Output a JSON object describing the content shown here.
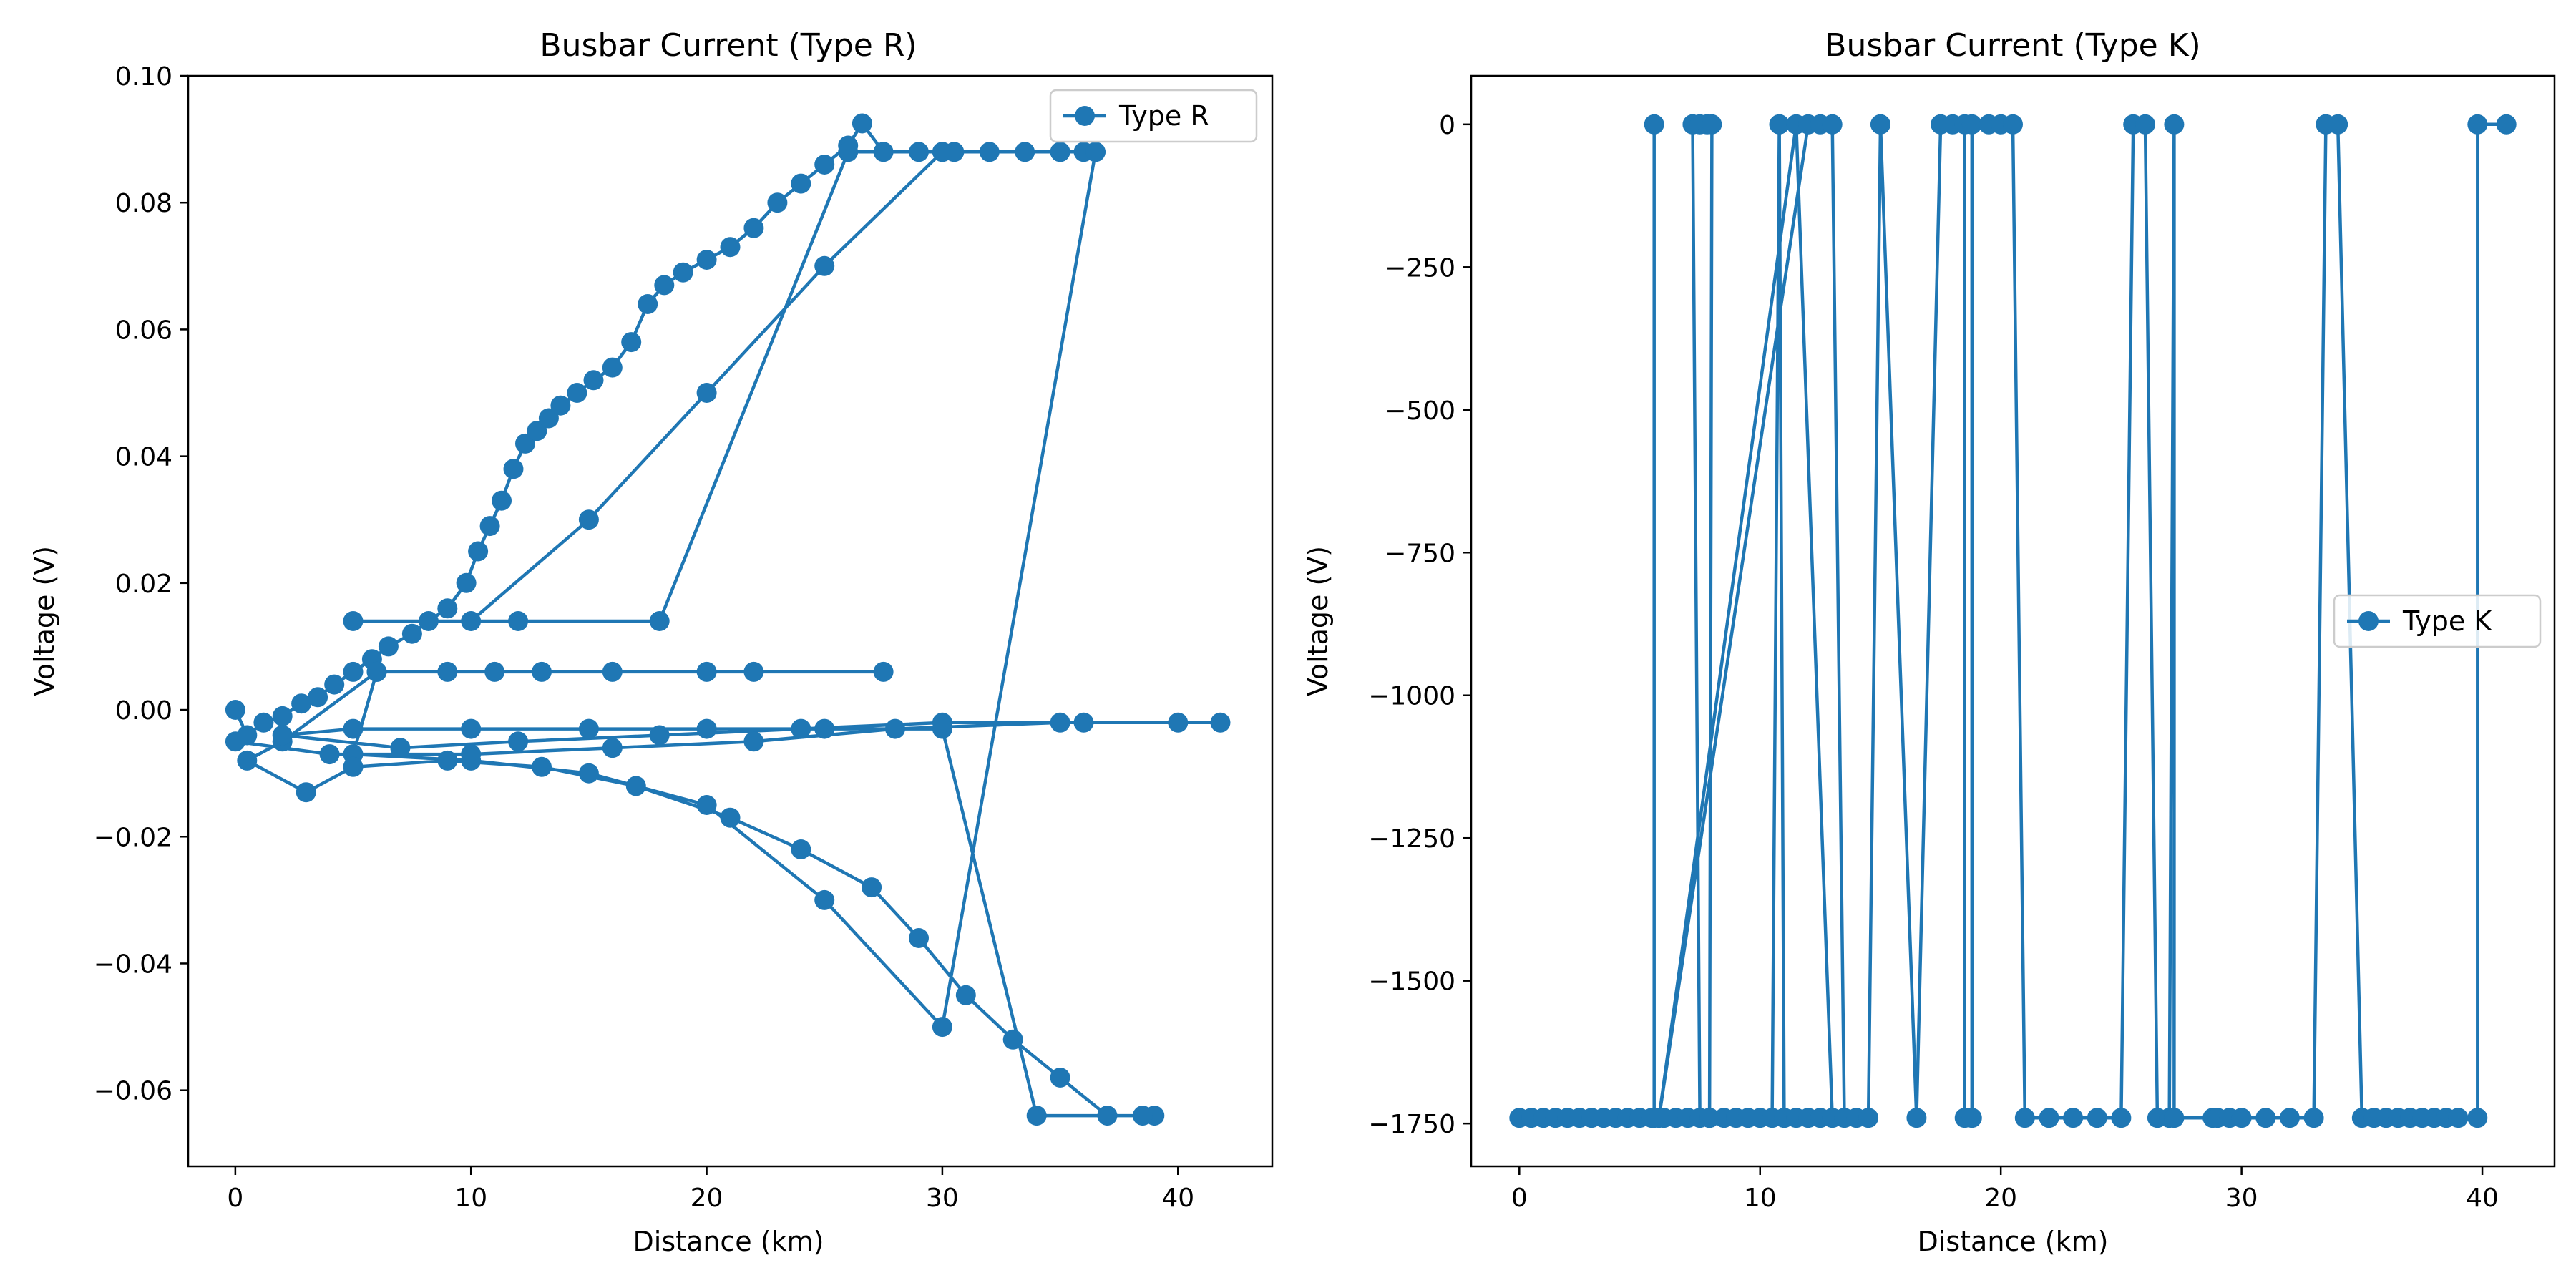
{
  "chart_data": [
    {
      "type": "line",
      "title": "Busbar Current (Type R)",
      "xlabel": "Distance (km)",
      "ylabel": "Voltage (V)",
      "xlim": [
        -2,
        44
      ],
      "ylim": [
        -0.072,
        0.1
      ],
      "xticks": [
        "0",
        "10",
        "20",
        "30",
        "40"
      ],
      "yticks": [
        "−0.06",
        "−0.04",
        "−0.02",
        "0.00",
        "0.02",
        "0.04",
        "0.06",
        "0.08",
        "0.10"
      ],
      "legend": "top-right",
      "color": "#1f77b4",
      "series": [
        {
          "name": "Type R",
          "x": [
            0,
            0.5,
            1.2,
            2.0,
            2.8,
            3.5,
            4.2,
            5.0,
            5.8,
            6.5,
            7.5,
            8.2,
            9.0,
            9.8,
            10.3,
            10.8,
            11.3,
            11.8,
            12.3,
            12.8,
            13.3,
            13.8,
            14.5,
            15.2,
            16.0,
            16.8,
            17.5,
            18.2,
            19.0,
            20.0,
            21.0,
            22.0,
            23.0,
            24.0,
            25.0,
            26.0,
            26.6,
            27.5,
            29.0,
            30.5,
            32.0,
            33.5,
            35.0,
            36.5,
            36.0,
            30.0,
            25.0,
            20.0,
            15.0,
            10.0,
            5.0,
            12.0,
            18.0,
            26.0,
            30.0,
            35.0,
            36.5,
            30.0,
            25.0,
            20.0,
            15.0,
            10.0,
            5.0,
            6.0,
            9.0,
            13.0,
            20.0,
            27.5,
            22.0,
            16.0,
            11.0,
            6.0,
            2.0,
            0.5,
            3.0,
            5.0,
            9.0,
            13.0,
            17.0,
            21.0,
            24.0,
            27.0,
            29.0,
            31.0,
            33.0,
            35.0,
            37.0,
            39.0,
            38.5,
            34.0,
            30.0,
            25.0,
            20.0,
            15.0,
            10.0,
            5.0,
            2.0,
            7.0,
            12.0,
            18.0,
            24.0,
            30.0,
            36.0,
            40.0,
            41.8,
            35.0,
            28.0,
            22.0,
            16.0,
            10.0,
            4.0,
            0.0
          ],
          "y": [
            0.0,
            -0.004,
            -0.002,
            -0.001,
            0.001,
            0.002,
            0.004,
            0.006,
            0.008,
            0.01,
            0.012,
            0.014,
            0.016,
            0.02,
            0.025,
            0.029,
            0.033,
            0.038,
            0.042,
            0.044,
            0.046,
            0.048,
            0.05,
            0.052,
            0.054,
            0.058,
            0.064,
            0.067,
            0.069,
            0.071,
            0.073,
            0.076,
            0.08,
            0.083,
            0.086,
            0.089,
            0.0925,
            0.088,
            0.088,
            0.088,
            0.088,
            0.088,
            0.088,
            0.088,
            0.088,
            0.088,
            0.07,
            0.05,
            0.03,
            0.014,
            0.014,
            0.014,
            0.014,
            0.088,
            0.088,
            0.088,
            0.088,
            -0.05,
            -0.03,
            -0.015,
            -0.01,
            -0.008,
            -0.007,
            0.006,
            0.006,
            0.006,
            0.006,
            0.006,
            0.006,
            0.006,
            0.006,
            0.006,
            -0.005,
            -0.008,
            -0.013,
            -0.009,
            -0.008,
            -0.009,
            -0.012,
            -0.017,
            -0.022,
            -0.028,
            -0.036,
            -0.045,
            -0.052,
            -0.058,
            -0.064,
            -0.064,
            -0.064,
            -0.064,
            -0.003,
            -0.003,
            -0.003,
            -0.003,
            -0.003,
            -0.003,
            -0.004,
            -0.006,
            -0.005,
            -0.004,
            -0.003,
            -0.002,
            -0.002,
            -0.002,
            -0.002,
            -0.002,
            -0.003,
            -0.005,
            -0.006,
            -0.007,
            -0.007,
            -0.005
          ]
        }
      ]
    },
    {
      "type": "line",
      "title": "Busbar Current (Type K)",
      "xlabel": "Distance (km)",
      "ylabel": "Voltage (V)",
      "xlim": [
        -2,
        43
      ],
      "ylim": [
        -1825,
        85
      ],
      "xticks": [
        "0",
        "10",
        "20",
        "30",
        "40"
      ],
      "yticks": [
        "−1750",
        "−1500",
        "−1250",
        "−1000",
        "−750",
        "−500",
        "−250",
        "0"
      ],
      "legend": "center-right",
      "color": "#1f77b4",
      "series": [
        {
          "name": "Type K",
          "x": [
            5.6,
            5.6,
            0.0,
            0.5,
            1.0,
            1.5,
            2.0,
            2.5,
            3.0,
            3.5,
            4.0,
            4.5,
            5.0,
            5.5,
            6.0,
            6.5,
            7.0,
            7.5,
            7.2,
            7.2,
            7.5,
            7.8,
            8.0,
            7.9,
            7.9,
            8.5,
            9.0,
            9.5,
            10.0,
            10.5,
            10.8,
            10.8,
            11.0,
            11.0,
            11.5,
            12.0,
            12.5,
            13.0,
            11.5,
            5.8,
            12.0,
            12.5,
            13.0,
            13.5,
            14.0,
            14.5,
            15.0,
            15.0,
            16.5,
            17.5,
            18.0,
            18.5,
            18.5,
            18.8,
            18.8,
            19.5,
            20.0,
            20.5,
            21.0,
            22.0,
            23.0,
            24.0,
            25.0,
            25.5,
            26.0,
            26.5,
            27.0,
            27.2,
            27.2,
            28.8,
            29.0,
            29.5,
            30.0,
            31.0,
            32.0,
            33.0,
            33.5,
            33.5,
            34.0,
            35.0,
            35.5,
            36.0,
            36.5,
            37.0,
            37.5,
            38.0,
            38.5,
            39.0,
            39.8,
            39.8,
            41.0
          ],
          "y": [
            0,
            -1740,
            -1740,
            -1740,
            -1740,
            -1740,
            -1740,
            -1740,
            -1740,
            -1740,
            -1740,
            -1740,
            -1740,
            -1740,
            -1740,
            -1740,
            -1740,
            -1740,
            0,
            0,
            0,
            0,
            0,
            -1740,
            -1740,
            -1740,
            -1740,
            -1740,
            -1740,
            -1740,
            0,
            0,
            -1740,
            -1740,
            -1740,
            -1740,
            -1740,
            -1740,
            0,
            -1740,
            0,
            0,
            0,
            -1740,
            -1740,
            -1740,
            0,
            0,
            -1740,
            0,
            0,
            0,
            -1740,
            -1740,
            0,
            0,
            0,
            0,
            -1740,
            -1740,
            -1740,
            -1740,
            -1740,
            0,
            0,
            -1740,
            -1740,
            0,
            -1740,
            -1740,
            -1740,
            -1740,
            -1740,
            -1740,
            -1740,
            -1740,
            0,
            0,
            0,
            -1740,
            -1740,
            -1740,
            -1740,
            -1740,
            -1740,
            -1740,
            -1740,
            -1740,
            -1740,
            0,
            0
          ]
        }
      ]
    }
  ]
}
